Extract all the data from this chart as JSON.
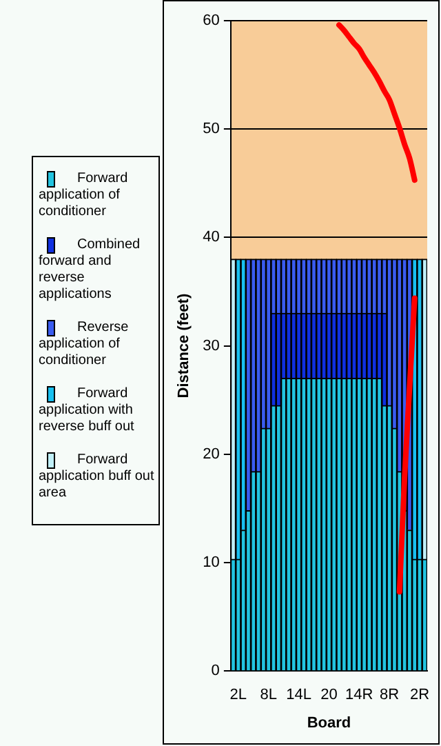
{
  "chart_data": {
    "type": "bar",
    "stacked": true,
    "xlabel": "Board",
    "ylabel": "Distance (feet)",
    "categories": [
      null,
      "2L",
      null,
      null,
      null,
      null,
      null,
      "8L",
      null,
      null,
      null,
      null,
      null,
      "14L",
      null,
      null,
      null,
      null,
      null,
      "20",
      null,
      null,
      null,
      null,
      null,
      "14R",
      null,
      null,
      null,
      null,
      null,
      "8R",
      null,
      null,
      null,
      null,
      null,
      "2R",
      null
    ],
    "ylim": [
      0,
      60
    ],
    "yticks": [
      0,
      10,
      20,
      30,
      40,
      50,
      60
    ],
    "grid": "y",
    "legend": "left",
    "series": [
      {
        "name": "Forward application of conditioner",
        "color": "#22c4e0",
        "values": [
          10.3,
          10.3,
          13,
          14.8,
          18.4,
          18.4,
          22.4,
          22.4,
          24.5,
          24.5,
          27,
          27,
          27,
          27,
          27,
          27,
          27,
          27,
          27,
          27,
          27,
          27,
          27,
          27,
          27,
          27,
          27,
          27,
          27,
          27,
          24.5,
          24.5,
          22.4,
          18.4,
          14.8,
          13,
          10.3,
          10.3,
          10.3
        ]
      },
      {
        "name": "Combined forward and reverse applications",
        "color": "#1030e0",
        "values": [
          null,
          null,
          null,
          null,
          null,
          null,
          null,
          null,
          8.5,
          8.5,
          6,
          6,
          6,
          6,
          6,
          6,
          6,
          6,
          6,
          6,
          6,
          6,
          6,
          6,
          6,
          6,
          6,
          6,
          6,
          6,
          8.5,
          null,
          null,
          null,
          null,
          null,
          null,
          null,
          null
        ]
      },
      {
        "name": "Reverse application of conditioner",
        "color": "#3a5cf0",
        "values": [
          null,
          null,
          null,
          23.2,
          19.6,
          19.6,
          15.6,
          15.6,
          5,
          5,
          5,
          5,
          5,
          5,
          5,
          5,
          5,
          5,
          5,
          5,
          5,
          5,
          5,
          5,
          5,
          5,
          5,
          5,
          5,
          5,
          5,
          13.5,
          15.6,
          19.6,
          23.2,
          25,
          null,
          null,
          null
        ]
      },
      {
        "name": "Forward application with reverse buff out",
        "color": "#18c0f0",
        "values": [
          null,
          27.7,
          25,
          null,
          null,
          null,
          null,
          null,
          null,
          null,
          null,
          null,
          null,
          null,
          null,
          null,
          null,
          null,
          null,
          null,
          null,
          null,
          null,
          null,
          null,
          null,
          null,
          null,
          null,
          null,
          null,
          null,
          null,
          null,
          null,
          null,
          27.7,
          27.7,
          null
        ]
      },
      {
        "name": "Forward application buff out area",
        "color": "#c0f0f8",
        "values": [
          27.7,
          null,
          null,
          null,
          null,
          null,
          null,
          null,
          null,
          null,
          null,
          null,
          null,
          null,
          null,
          null,
          null,
          null,
          null,
          null,
          null,
          null,
          null,
          null,
          null,
          null,
          null,
          null,
          null,
          null,
          null,
          null,
          null,
          null,
          null,
          null,
          null,
          null,
          27.7
        ]
      },
      {
        "type": "line",
        "color": "#ff0000",
        "values": [
          null,
          null,
          null,
          null,
          null,
          null,
          null,
          null,
          null,
          null,
          null,
          null,
          null,
          null,
          null,
          null,
          null,
          null,
          null,
          null,
          null,
          59.6,
          59.1,
          58.5,
          57.9,
          57.4,
          56.6,
          55.9,
          55.2,
          54.4,
          53.5,
          52.7,
          51.4,
          50.1,
          48.6,
          47.3,
          45.3,
          null,
          null
        ]
      },
      {
        "type": "line",
        "color": "#ff0000",
        "values": [
          null,
          null,
          null,
          null,
          null,
          null,
          null,
          null,
          null,
          null,
          null,
          null,
          null,
          null,
          null,
          null,
          null,
          null,
          null,
          null,
          null,
          null,
          null,
          null,
          null,
          null,
          null,
          null,
          null,
          null,
          null,
          null,
          null,
          7.3,
          17.8,
          26.2,
          34.4,
          null,
          null
        ]
      }
    ]
  }
}
